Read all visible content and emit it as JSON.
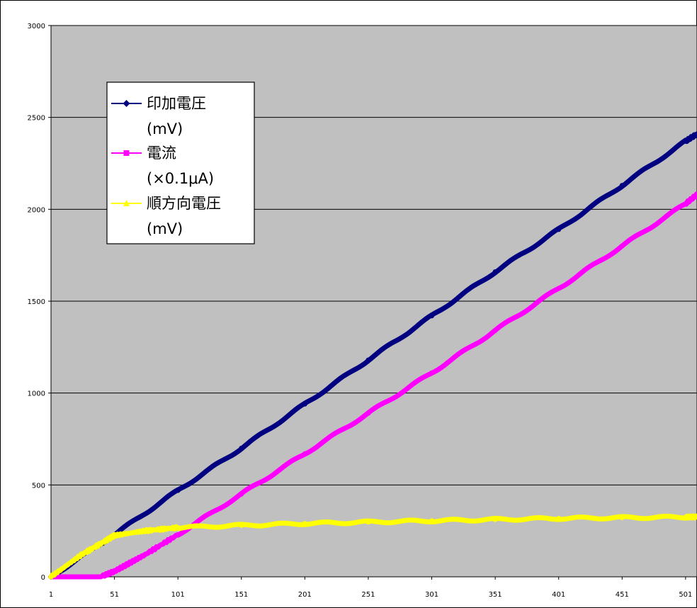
{
  "chart_data": {
    "type": "line",
    "title": "",
    "xlabel": "",
    "ylabel": "",
    "x_ticks": [
      "1",
      "51",
      "101",
      "151",
      "201",
      "251",
      "301",
      "351",
      "401",
      "451",
      "501"
    ],
    "y_ticks": [
      "0",
      "500",
      "1000",
      "1500",
      "2000",
      "2500",
      "3000"
    ],
    "xlim": [
      1,
      510
    ],
    "ylim": [
      0,
      3000
    ],
    "grid": "horizontal",
    "plot_background": "#c0c0c0",
    "legend_position": "top-left",
    "series": [
      {
        "name": "印加電圧",
        "unit": "(mV)",
        "color": "#000080",
        "marker": "diamond",
        "x": [
          1,
          51,
          101,
          151,
          201,
          251,
          301,
          351,
          401,
          451,
          501,
          510
        ],
        "y": [
          0,
          230,
          470,
          700,
          940,
          1180,
          1420,
          1660,
          1890,
          2130,
          2370,
          2410
        ]
      },
      {
        "name": "電流",
        "unit": "(×0.1μA)",
        "color": "#ff00ff",
        "marker": "square",
        "x": [
          1,
          40,
          51,
          75,
          101,
          151,
          201,
          251,
          301,
          351,
          401,
          451,
          501,
          510
        ],
        "y": [
          0,
          0,
          30,
          120,
          230,
          450,
          670,
          890,
          1110,
          1340,
          1570,
          1800,
          2030,
          2080
        ]
      },
      {
        "name": "順方向電圧",
        "unit": "(mV)",
        "color": "#ffff00",
        "marker": "triangle",
        "x": [
          1,
          25,
          45,
          51,
          75,
          101,
          151,
          201,
          251,
          301,
          351,
          401,
          451,
          501,
          510
        ],
        "y": [
          0,
          120,
          200,
          225,
          250,
          268,
          280,
          290,
          298,
          305,
          312,
          318,
          322,
          325,
          326
        ]
      }
    ]
  }
}
